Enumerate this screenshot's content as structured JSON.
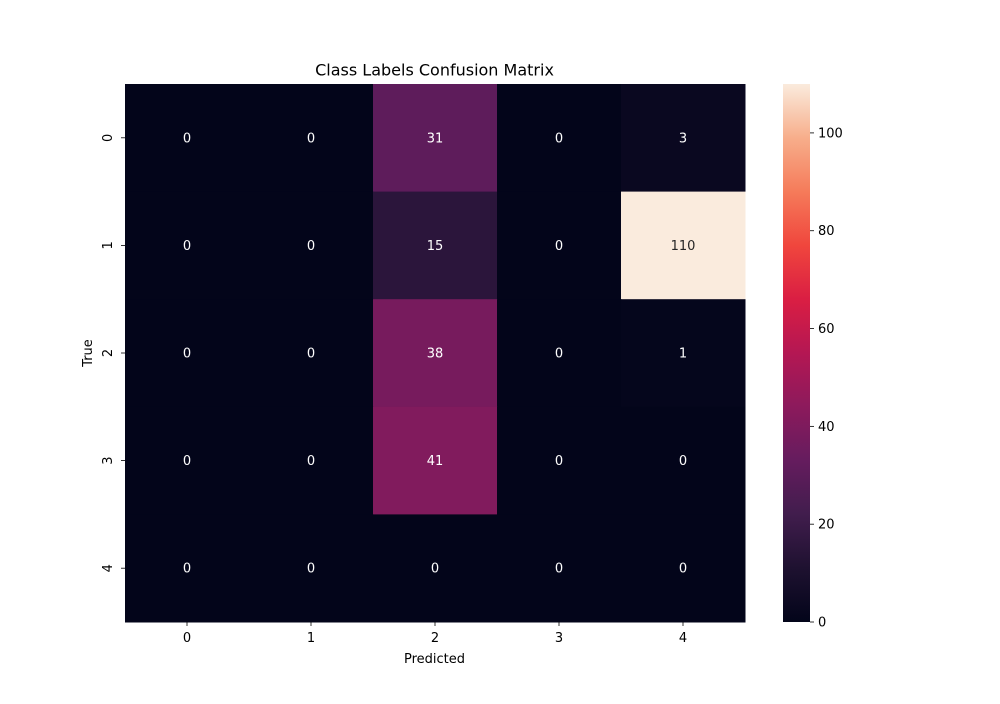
{
  "chart_data": {
    "type": "heatmap",
    "title": "Class Labels Confusion Matrix",
    "xlabel": "Predicted",
    "ylabel": "True",
    "x_categories": [
      "0",
      "1",
      "2",
      "3",
      "4"
    ],
    "y_categories": [
      "0",
      "1",
      "2",
      "3",
      "4"
    ],
    "values": [
      [
        0,
        0,
        31,
        0,
        3
      ],
      [
        0,
        0,
        15,
        0,
        110
      ],
      [
        0,
        0,
        38,
        0,
        1
      ],
      [
        0,
        0,
        41,
        0,
        0
      ],
      [
        0,
        0,
        0,
        0,
        0
      ]
    ],
    "colorbar": {
      "min": 0,
      "max": 110,
      "ticks": [
        "0",
        "20",
        "40",
        "60",
        "80",
        "100"
      ],
      "colormap": "rocket"
    },
    "grid": false,
    "annotations": true
  }
}
